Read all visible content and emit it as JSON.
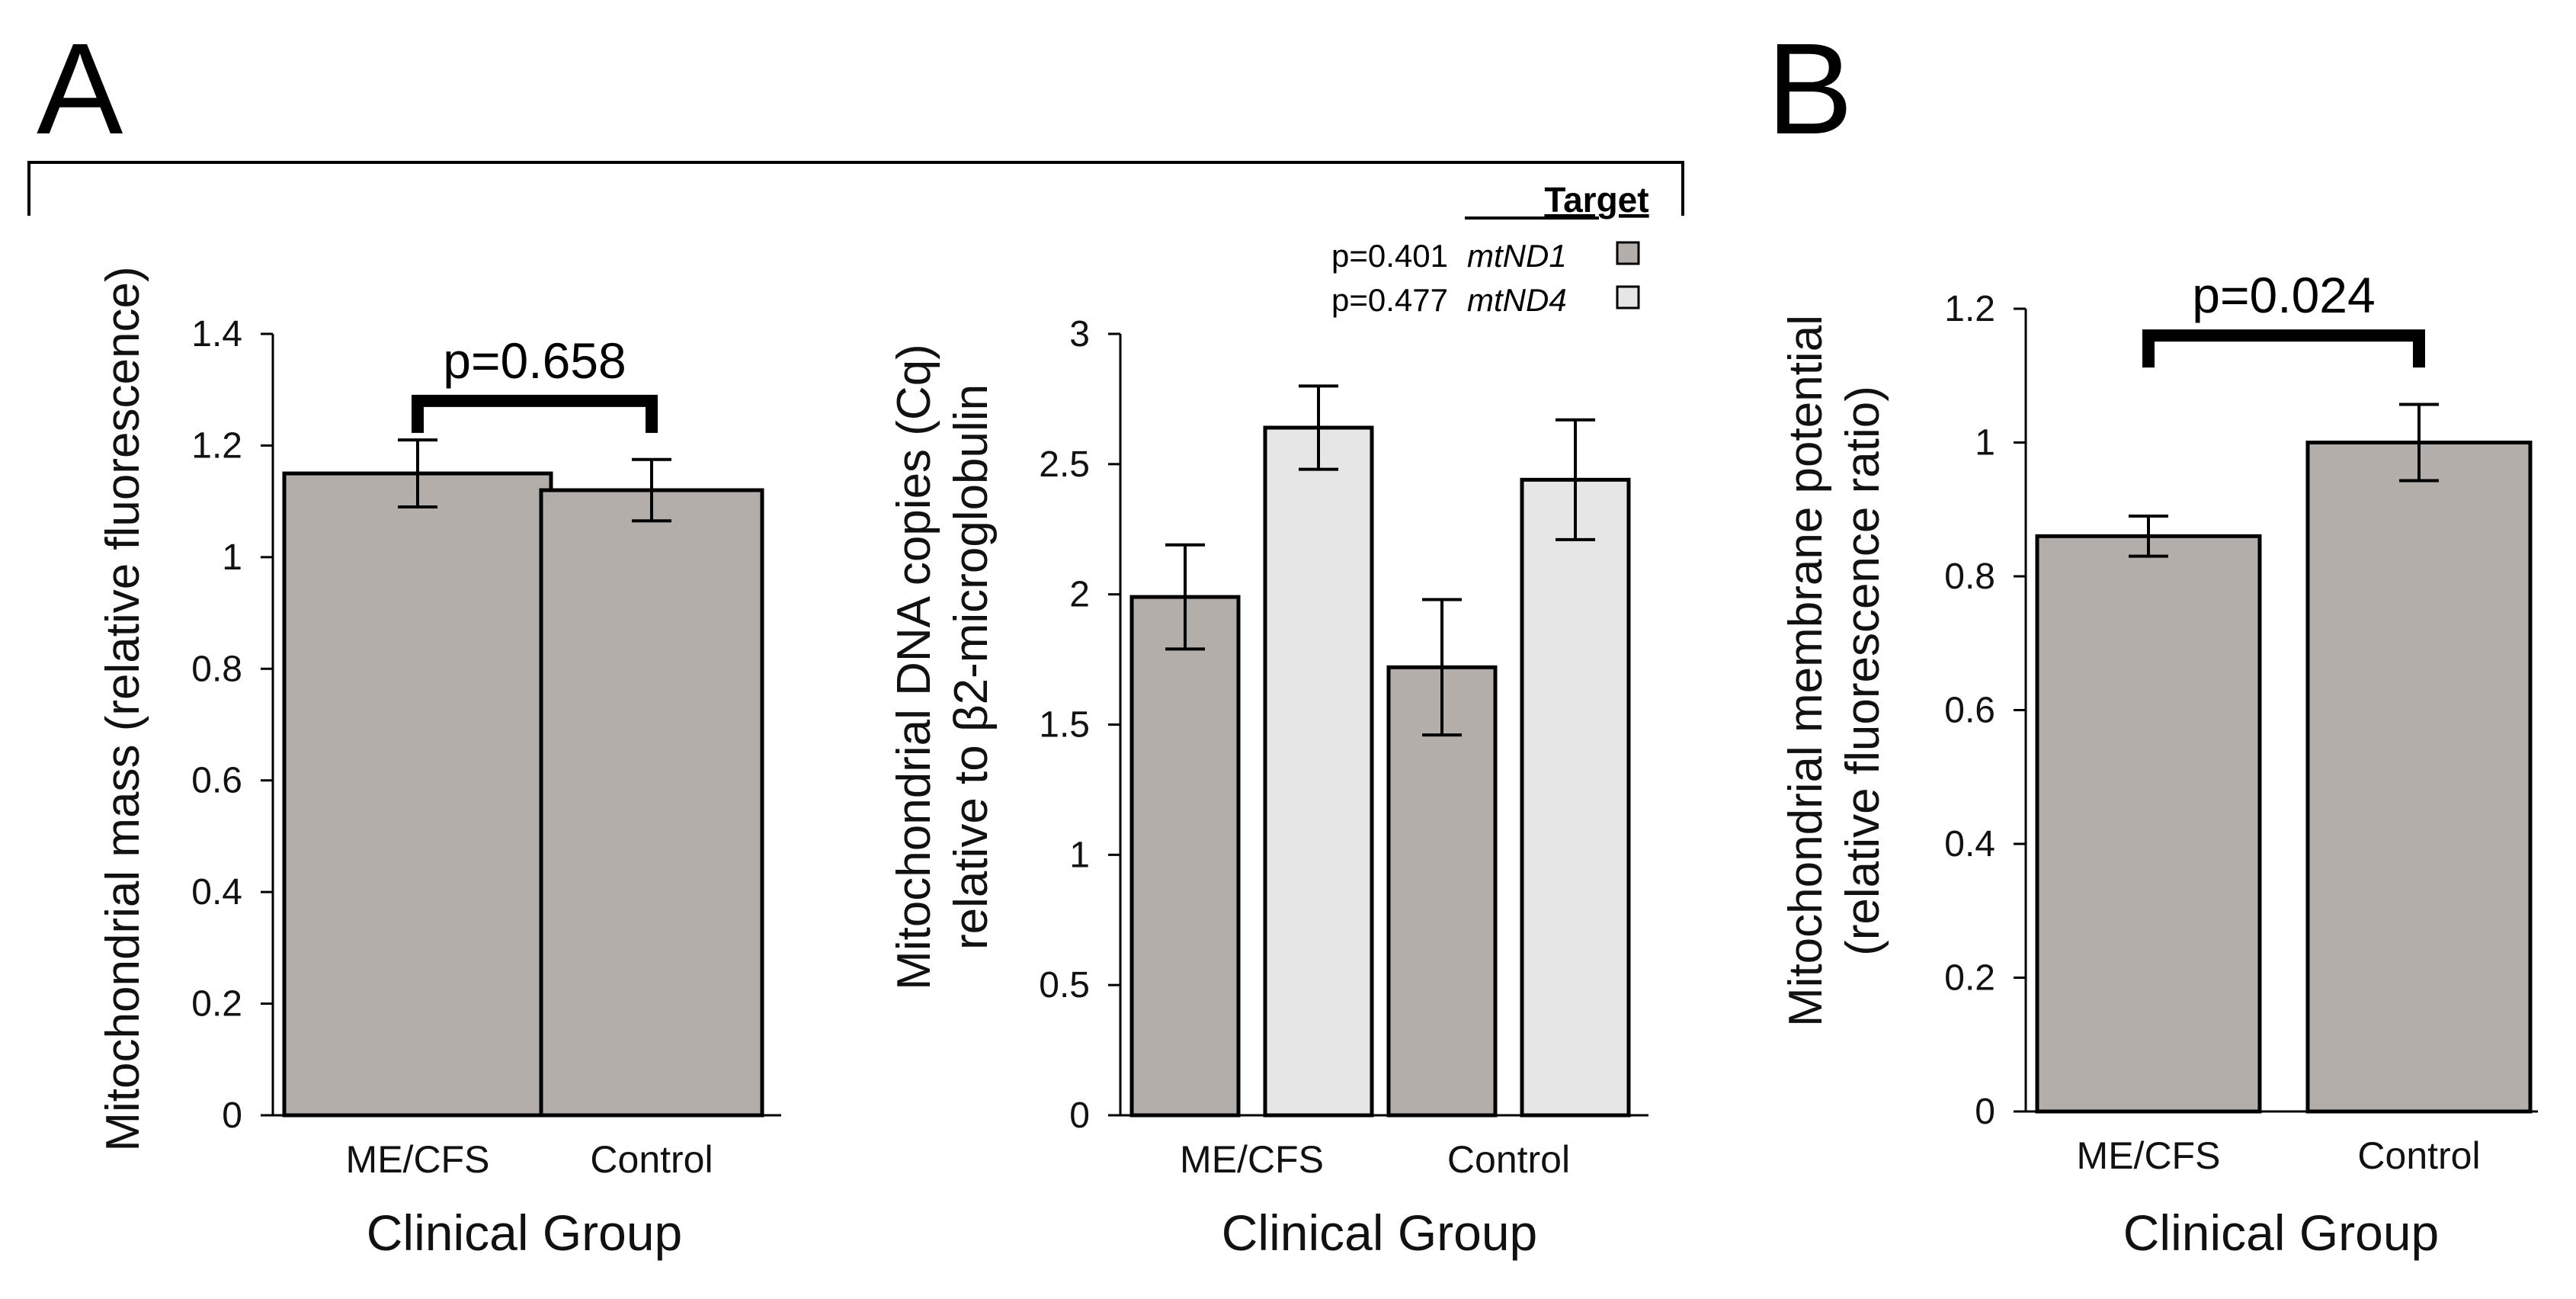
{
  "panel_labels": {
    "a": "A",
    "b": "B"
  },
  "colors": {
    "mtND1": "#b3aeaa",
    "mtND4": "#e6e6e6"
  },
  "chart_data": [
    {
      "id": "massChart",
      "type": "bar",
      "panel": "A",
      "ylabel_lines": [
        "Mitochondrial mass (relative fluorescence)"
      ],
      "xlabel": "Clinical Group",
      "ylim": [
        0,
        1.4
      ],
      "yticks": [
        0,
        0.2,
        0.4,
        0.6,
        0.8,
        1,
        1.2,
        1.4
      ],
      "ytick_labels": [
        "0",
        "0.2",
        "0.4",
        "0.6",
        "0.8",
        "1",
        "1.2",
        "1.4"
      ],
      "categories": [
        "ME/CFS",
        "Control"
      ],
      "series": [
        {
          "name": "",
          "color": "#b3aeaa",
          "values": [
            1.15,
            1.12
          ],
          "errors": [
            0.06,
            0.055
          ]
        }
      ],
      "significance": {
        "label": "p=0.658",
        "at": 1.28
      }
    },
    {
      "id": "dnaChart",
      "type": "bar",
      "panel": "A",
      "ylabel_lines": [
        "Mitochondrial DNA copies (Cq)",
        "relative to β2-microglobulin"
      ],
      "xlabel": "Clinical Group",
      "ylim": [
        0,
        3
      ],
      "yticks": [
        0,
        0.5,
        1,
        1.5,
        2,
        2.5,
        3
      ],
      "ytick_labels": [
        "0",
        "0.5",
        "1",
        "1.5",
        "2",
        "2.5",
        "3"
      ],
      "categories": [
        "ME/CFS",
        "Control"
      ],
      "legend": {
        "title": "Target",
        "entries": [
          {
            "pvalue": "p=0.401",
            "name": "mtND1",
            "color": "#b3aeaa"
          },
          {
            "pvalue": "p=0.477",
            "name": "mtND4",
            "color": "#e6e6e6"
          }
        ]
      },
      "series": [
        {
          "name": "mtND1",
          "color": "#b3aeaa",
          "values": [
            1.99,
            1.72
          ],
          "errors": [
            0.2,
            0.26
          ]
        },
        {
          "name": "mtND4",
          "color": "#e6e6e6",
          "values": [
            2.64,
            2.44
          ],
          "errors": [
            0.16,
            0.23
          ]
        }
      ]
    },
    {
      "id": "potentialChart",
      "type": "bar",
      "panel": "B",
      "ylabel_lines": [
        "Mitochondrial membrane potential",
        "(relative fluorescence ratio)"
      ],
      "xlabel": "Clinical Group",
      "ylim": [
        0,
        1.2
      ],
      "yticks": [
        0,
        0.2,
        0.4,
        0.6,
        0.8,
        1,
        1.2
      ],
      "ytick_labels": [
        "0",
        "0.2",
        "0.4",
        "0.6",
        "0.8",
        "1",
        "1.2"
      ],
      "categories": [
        "ME/CFS",
        "Control"
      ],
      "series": [
        {
          "name": "",
          "color": "#b3aeaa",
          "values": [
            0.86,
            1.0
          ],
          "errors": [
            0.03,
            0.057
          ]
        }
      ],
      "significance": {
        "label": "p=0.024",
        "at": 1.16
      }
    }
  ]
}
